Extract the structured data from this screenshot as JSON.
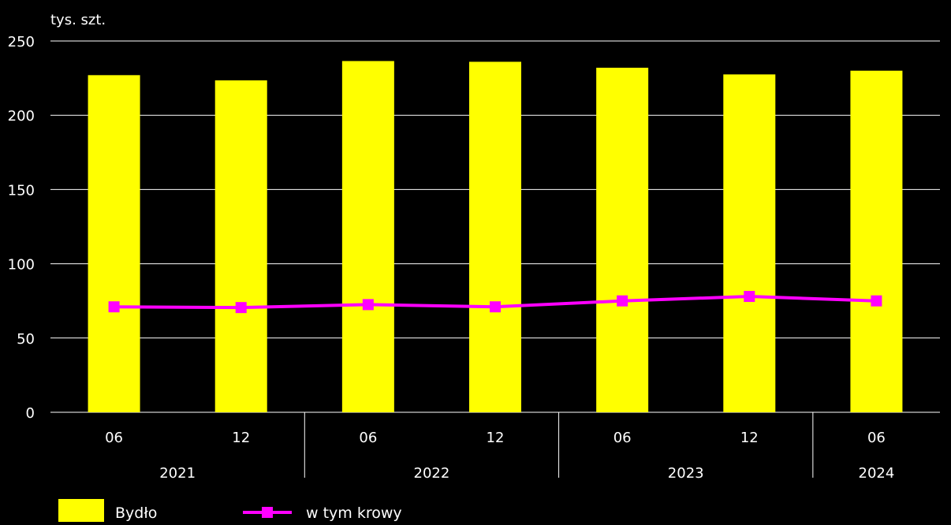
{
  "chart_data": {
    "type": "bar",
    "ylabel": "tys. szt.",
    "ylim": [
      0,
      250
    ],
    "yticks": [
      0,
      50,
      100,
      150,
      200,
      250
    ],
    "grid": true,
    "categories": [
      "06",
      "12",
      "06",
      "12",
      "06",
      "12",
      "06"
    ],
    "year_groups": [
      {
        "label": "2021",
        "count": 2
      },
      {
        "label": "2022",
        "count": 2
      },
      {
        "label": "2023",
        "count": 2
      },
      {
        "label": "2024",
        "count": 1
      }
    ],
    "series": [
      {
        "name": "Bydło",
        "type": "bar",
        "color": "#ffff00",
        "values": [
          227,
          223.5,
          236.5,
          236,
          232,
          227.5,
          230
        ]
      },
      {
        "name": "w tym krowy",
        "type": "line",
        "color": "#ff00ff",
        "marker": "square",
        "values": [
          71,
          70.5,
          72.5,
          71,
          75,
          78,
          75
        ]
      }
    ],
    "legend": "bottom-left"
  }
}
